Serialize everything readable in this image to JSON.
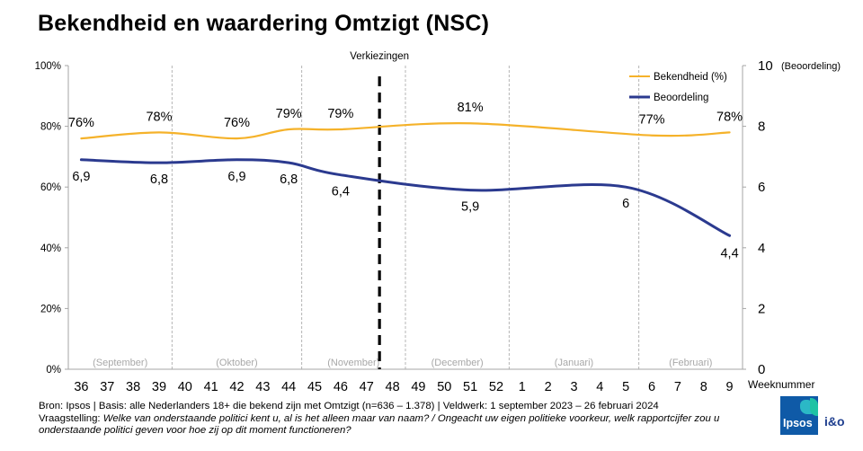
{
  "title": "Bekendheid en waardering Omtzigt (NSC)",
  "chart_data": {
    "type": "line",
    "weeks": [
      "36",
      "37",
      "38",
      "39",
      "40",
      "41",
      "42",
      "43",
      "44",
      "45",
      "46",
      "47",
      "48",
      "49",
      "50",
      "51",
      "52",
      "1",
      "2",
      "3",
      "4",
      "5",
      "6",
      "7",
      "8",
      "9"
    ],
    "x_axis_label": "Weeknummer",
    "y_left": {
      "ticks": [
        "0%",
        "20%",
        "40%",
        "60%",
        "80%",
        "100%"
      ],
      "range": [
        0,
        100
      ]
    },
    "y_right": {
      "label": "(Beoordeling)",
      "ticks": [
        "0",
        "2",
        "4",
        "6",
        "8",
        "10"
      ],
      "range": [
        0,
        10
      ]
    },
    "event": {
      "label": "Verkiezingen",
      "position_between": [
        "47",
        "48"
      ]
    },
    "months": [
      {
        "label": "(September)",
        "from": "36",
        "to": "39"
      },
      {
        "label": "(Oktober)",
        "from": "40",
        "to": "44"
      },
      {
        "label": "(November)",
        "from": "45",
        "to": "48"
      },
      {
        "label": "(December)",
        "from": "49",
        "to": "52"
      },
      {
        "label": "(Januari)",
        "from": "1",
        "to": "5"
      },
      {
        "label": "(Februari)",
        "from": "6",
        "to": "9"
      }
    ],
    "series": [
      {
        "name": "Bekendheid (%)",
        "axis": "left",
        "color": "#f5b22a",
        "points": [
          {
            "week": "36",
            "value": 76,
            "label": "76%"
          },
          {
            "week": "39",
            "value": 78,
            "label": "78%"
          },
          {
            "week": "42",
            "value": 76,
            "label": "76%"
          },
          {
            "week": "44",
            "value": 79,
            "label": "79%"
          },
          {
            "week": "46",
            "value": 79,
            "label": "79%"
          },
          {
            "week": "51",
            "value": 81,
            "label": "81%"
          },
          {
            "week": "6",
            "value": 77,
            "label": "77%"
          },
          {
            "week": "9",
            "value": 78,
            "label": "78%"
          }
        ]
      },
      {
        "name": "Beoordeling",
        "axis": "right",
        "color": "#2b3a8f",
        "points": [
          {
            "week": "36",
            "value": 6.9,
            "label": "6,9"
          },
          {
            "week": "39",
            "value": 6.8,
            "label": "6,8"
          },
          {
            "week": "42",
            "value": 6.9,
            "label": "6,9"
          },
          {
            "week": "44",
            "value": 6.8,
            "label": "6,8"
          },
          {
            "week": "46",
            "value": 6.4,
            "label": "6,4"
          },
          {
            "week": "51",
            "value": 5.9,
            "label": "5,9"
          },
          {
            "week": "5",
            "value": 6.0,
            "label": "6"
          },
          {
            "week": "9",
            "value": 4.4,
            "label": "4,4"
          }
        ]
      }
    ]
  },
  "footer": {
    "source": "Bron: Ipsos | Basis: alle Nederlanders  18+ die bekend zijn met Omtzigt (n=636 – 1.378) | Veldwerk:  1 september  2023 – 26 februari  2024",
    "question_prefix": "Vraagstelling:",
    "question": "Welke van onderstaande politici kent u, al is het alleen maar van naam? / Ongeacht uw eigen politieke voorkeur, welk rapportcijfer zou u onderstaande politici geven voor hoe zij op dit moment functioneren?"
  },
  "logo": {
    "brand": "Ipsos",
    "partner": "i&o"
  }
}
